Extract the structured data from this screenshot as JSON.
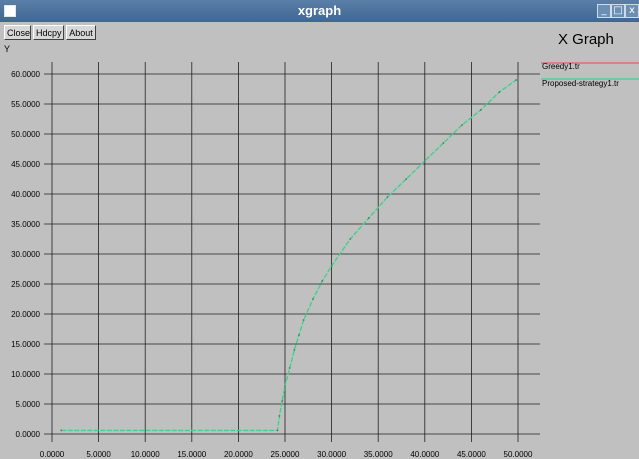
{
  "window": {
    "title": "xgraph",
    "controls": [
      "_",
      "□",
      "x"
    ]
  },
  "toolbar": {
    "close_label": "Close",
    "hdcpy_label": "Hdcpy",
    "about_label": "About"
  },
  "graph_title": "X Graph",
  "chart_data": {
    "type": "line",
    "title": "X Graph",
    "xlabel": "",
    "ylabel": "Y",
    "xlim": [
      0,
      50
    ],
    "ylim": [
      0,
      60
    ],
    "x_ticks": [
      "0.0000",
      "5.0000",
      "10.0000",
      "15.0000",
      "20.0000",
      "25.0000",
      "30.0000",
      "35.0000",
      "40.0000",
      "45.0000",
      "50.0000"
    ],
    "y_ticks": [
      "0.0000",
      "5.0000",
      "10.0000",
      "15.0000",
      "20.0000",
      "25.0000",
      "30.0000",
      "35.0000",
      "40.0000",
      "45.0000",
      "50.0000",
      "55.0000",
      "60.0000"
    ],
    "grid": true,
    "legend_position": "top-right",
    "series": [
      {
        "name": "Greedy1.tr",
        "color": "#e06060",
        "x": [],
        "y": []
      },
      {
        "name": "Proposed-strategy1.tr",
        "color": "#40d090",
        "x": [
          1,
          24.2,
          24.4,
          24.7,
          25,
          25.5,
          26,
          26.5,
          27,
          28,
          29,
          30,
          32,
          34,
          36,
          38,
          40,
          42,
          44,
          46,
          48,
          49.8
        ],
        "y": [
          0.6,
          0.6,
          3,
          5.5,
          8,
          11,
          14,
          16.5,
          19,
          22.5,
          25.5,
          28,
          32.5,
          36,
          39.5,
          42.5,
          45.5,
          48.5,
          51.5,
          54,
          57,
          59
        ]
      }
    ]
  }
}
